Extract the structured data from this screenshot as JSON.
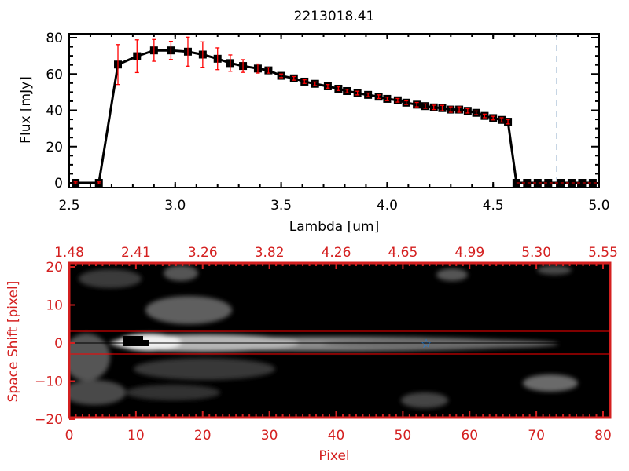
{
  "chart_data": [
    {
      "type": "line",
      "title": "2213018.41",
      "xlabel": "Lambda [um]",
      "ylabel": "Flux [mJy]",
      "xlim": [
        2.5,
        5.0
      ],
      "ylim": [
        0,
        80
      ],
      "xticks": [
        "2.5",
        "3.0",
        "3.5",
        "4.0",
        "4.5",
        "5.0"
      ],
      "xtick_values": [
        2.5,
        3.0,
        3.5,
        4.0,
        4.5,
        5.0
      ],
      "yticks": [
        "0",
        "20",
        "40",
        "60",
        "80"
      ],
      "ytick_values": [
        0,
        20,
        40,
        60,
        80
      ],
      "series": [
        {
          "name": "flux",
          "x": [
            2.53,
            2.64,
            2.73,
            2.82,
            2.9,
            2.98,
            3.06,
            3.13,
            3.2,
            3.26,
            3.32,
            3.39,
            3.44,
            3.5,
            3.56,
            3.61,
            3.66,
            3.72,
            3.77,
            3.81,
            3.86,
            3.91,
            3.96,
            4.0,
            4.05,
            4.09,
            4.14,
            4.18,
            4.22,
            4.26,
            4.3,
            4.34,
            4.38,
            4.42,
            4.46,
            4.5,
            4.54,
            4.57,
            4.61,
            4.66,
            4.71,
            4.76,
            4.82,
            4.87,
            4.92,
            4.97
          ],
          "y": [
            0,
            0,
            65.2,
            69.8,
            73.0,
            73.0,
            72.3,
            70.7,
            68.4,
            66.0,
            64.4,
            63.0,
            62.0,
            59.0,
            57.6,
            55.8,
            54.6,
            53.2,
            51.9,
            50.6,
            49.5,
            48.5,
            47.5,
            46.3,
            45.5,
            44.2,
            43.1,
            42.3,
            41.6,
            41.2,
            40.4,
            40.4,
            39.7,
            38.6,
            36.9,
            35.7,
            34.7,
            33.7,
            0,
            0,
            0,
            0,
            0,
            0,
            0,
            0
          ],
          "yerr": [
            0.5,
            0.5,
            11,
            9,
            6,
            5,
            8,
            7,
            6,
            4.5,
            3.5,
            2.5,
            1.5,
            1,
            1,
            1,
            1,
            1,
            1,
            1,
            1,
            1,
            1,
            1,
            1,
            1,
            1.2,
            1.2,
            1.2,
            1.5,
            1.5,
            1.5,
            1.2,
            1,
            1,
            1,
            1.2,
            1.2,
            0,
            0,
            0,
            0,
            0,
            0,
            0,
            0
          ]
        }
      ],
      "reference_line_lambda": 4.8,
      "colors": {
        "line": "#000000",
        "error": "#ff0000",
        "ref": "#4a90d9"
      }
    },
    {
      "type": "heatmap",
      "xlabel": "Pixel",
      "ylabel": "Space Shift [pixel]",
      "xlim": [
        0,
        80
      ],
      "ylim": [
        -20,
        20
      ],
      "xticks": [
        "0",
        "10",
        "20",
        "30",
        "40",
        "50",
        "60",
        "70",
        "80"
      ],
      "xtick_values": [
        0,
        10,
        20,
        30,
        40,
        50,
        60,
        70,
        80
      ],
      "yticks": [
        "-20",
        "-10",
        "0",
        "10",
        "20"
      ],
      "ytick_values": [
        -20,
        -10,
        0,
        10,
        20
      ],
      "top_xticks": [
        "1.48",
        "2.41",
        "3.26",
        "3.82",
        "4.26",
        "4.65",
        "4.99",
        "5.30",
        "5.55"
      ],
      "aperture": [
        -3,
        3
      ],
      "trace_y": 0,
      "star_marker": {
        "x": 53.5,
        "y": 0
      },
      "colors": {
        "axis": "#d42020",
        "aperture": "#ff0000",
        "star": "#1e7fe0"
      }
    }
  ]
}
